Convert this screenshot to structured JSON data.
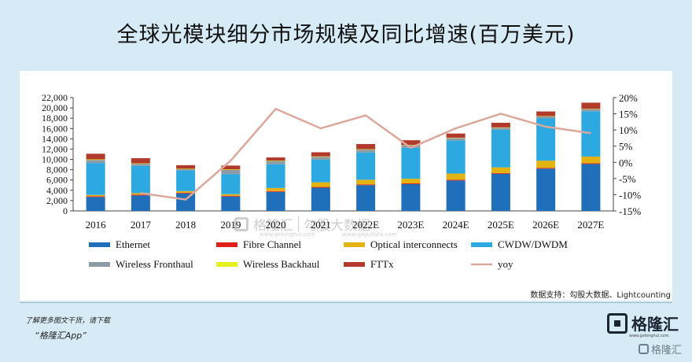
{
  "title": "全球光模块细分市场规模及同比增速(百万美元)",
  "source": "数据支持：勾股大数据、Lightcounting",
  "footer": {
    "note": "了解更多图文干货，请下载",
    "app": "“格隆汇App”"
  },
  "brand": {
    "name": "格隆汇",
    "sub": "www.gelonghui.com",
    "corner": "格隆汇"
  },
  "watermark": {
    "left": "格隆汇",
    "right": "勾股大数据",
    "left_url": "www.gelonghui.com",
    "right_url": "www.gogudata.com"
  },
  "colors": {
    "Ethernet": "#1f6fba",
    "Fibre Channel": "#e0211a",
    "Optical interconnects": "#e3b411",
    "CWDW/DWDM": "#2ca9e1",
    "Wireless Fronthaul": "#8c9aa3",
    "Wireless Backhaul": "#e4f01c",
    "FTTx": "#b13a2a",
    "yoy": "#dba89b"
  },
  "chart_data": {
    "type": "bar",
    "stacked": true,
    "categories": [
      "2016",
      "2017",
      "2018",
      "2019",
      "2020",
      "2021",
      "2022E",
      "2023E",
      "2024E",
      "2025E",
      "2026E",
      "2027E"
    ],
    "series": [
      {
        "name": "Ethernet",
        "values": [
          2700,
          3000,
          3400,
          2800,
          3700,
          4500,
          5000,
          5200,
          5900,
          7200,
          8200,
          9100
        ]
      },
      {
        "name": "Fibre Channel",
        "values": [
          150,
          150,
          150,
          150,
          150,
          150,
          150,
          150,
          150,
          150,
          150,
          150
        ]
      },
      {
        "name": "Optical interconnects",
        "values": [
          250,
          300,
          300,
          300,
          600,
          900,
          900,
          900,
          1200,
          1100,
          1400,
          1300
        ]
      },
      {
        "name": "CWDW/DWDM",
        "values": [
          6200,
          5300,
          4000,
          3900,
          4600,
          4400,
          5300,
          6000,
          6400,
          7300,
          8200,
          8800
        ]
      },
      {
        "name": "Wireless Fronthaul",
        "values": [
          600,
          400,
          250,
          800,
          650,
          550,
          550,
          500,
          500,
          400,
          400,
          400
        ]
      },
      {
        "name": "Wireless Backhaul",
        "values": [
          100,
          80,
          80,
          100,
          80,
          80,
          80,
          70,
          70,
          60,
          60,
          60
        ]
      },
      {
        "name": "FTTx",
        "values": [
          1100,
          1000,
          700,
          750,
          600,
          800,
          1000,
          900,
          800,
          900,
          900,
          1200
        ]
      },
      {
        "name": "yoy",
        "axis": "right",
        "type": "line",
        "values": [
          null,
          -9.5,
          -11.5,
          0.5,
          16.5,
          10.5,
          14.5,
          4.5,
          10.5,
          15,
          11,
          9
        ]
      }
    ],
    "y_left": {
      "ticks": [
        "0",
        "2,000",
        "4,000",
        "6,000",
        "8,000",
        "10,000",
        "12,000",
        "14,000",
        "16,000",
        "18,000",
        "20,000",
        "22,000"
      ],
      "min": 0,
      "max": 22000
    },
    "y_right": {
      "ticks": [
        "-15%",
        "-10%",
        "-5%",
        "0%",
        "5%",
        "10%",
        "15%",
        "20%"
      ],
      "min": -15,
      "max": 20
    },
    "legend_placement": "bottom",
    "grid": false
  }
}
